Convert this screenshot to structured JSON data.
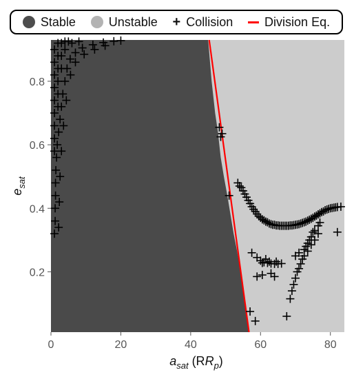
{
  "chart_data": {
    "type": "scatter",
    "xlabel_main": "a",
    "xlabel_sub": "sat",
    "xlabel_unit_open": " (R",
    "xlabel_unit_sub": "p",
    "xlabel_unit_close": ")",
    "ylabel_main": "e",
    "ylabel_sub": "sat",
    "xlim": [
      0,
      84
    ],
    "ylim": [
      0.01,
      0.93
    ],
    "x_ticks": [
      0,
      20,
      40,
      60,
      80
    ],
    "y_ticks": [
      0.2,
      0.4,
      0.6,
      0.8
    ],
    "x_tick_labels": [
      "0",
      "20",
      "40",
      "60",
      "80"
    ],
    "y_tick_labels": [
      "0.2",
      "0.4",
      "0.6",
      "0.8"
    ],
    "legend": [
      {
        "label": "Stable",
        "color": "#4d4d4d",
        "symbol": "dot"
      },
      {
        "label": "Unstable",
        "color": "#b3b3b3",
        "symbol": "dot"
      },
      {
        "label": "Collision",
        "color": "#000000",
        "symbol": "plus"
      },
      {
        "label": "Division Eq.",
        "color": "#ff0000",
        "symbol": "line"
      }
    ],
    "regions": {
      "stable_color": "#4a4a4a",
      "unstable_color": "#cccccc",
      "boundary": [
        [
          45.0,
          0.93
        ],
        [
          46.0,
          0.8
        ],
        [
          47.0,
          0.7
        ],
        [
          47.8,
          0.64
        ],
        [
          48.6,
          0.56
        ],
        [
          49.5,
          0.5
        ],
        [
          50.5,
          0.44
        ],
        [
          51.4,
          0.38
        ],
        [
          52.3,
          0.32
        ],
        [
          53.2,
          0.27
        ],
        [
          54.0,
          0.22
        ],
        [
          54.8,
          0.17
        ],
        [
          55.6,
          0.11
        ],
        [
          56.2,
          0.06
        ],
        [
          56.5,
          0.01
        ]
      ]
    },
    "series": [
      {
        "name": "Division Eq.",
        "type": "line",
        "color": "#ff0000",
        "x": [
          45.3,
          56.7
        ],
        "y": [
          0.93,
          0.01
        ]
      },
      {
        "name": "Collision",
        "type": "scatter",
        "color": "#000000",
        "points": [
          [
            1.0,
            0.32
          ],
          [
            1.2,
            0.36
          ],
          [
            1.2,
            0.4
          ],
          [
            1.3,
            0.44
          ],
          [
            1.3,
            0.48
          ],
          [
            1.4,
            0.52
          ],
          [
            1.6,
            0.56
          ],
          [
            1.8,
            0.6
          ],
          [
            2.2,
            0.64
          ],
          [
            2.6,
            0.68
          ],
          [
            3.0,
            0.72
          ],
          [
            3.4,
            0.76
          ],
          [
            4.0,
            0.8
          ],
          [
            4.6,
            0.84
          ],
          [
            5.5,
            0.87
          ],
          [
            7.0,
            0.89
          ],
          [
            9.0,
            0.905
          ],
          [
            12.0,
            0.915
          ],
          [
            15.0,
            0.922
          ],
          [
            18.0,
            0.926
          ],
          [
            20.0,
            0.928
          ],
          [
            2.2,
            0.34
          ],
          [
            2.4,
            0.42
          ],
          [
            2.6,
            0.5
          ],
          [
            3.0,
            0.58
          ],
          [
            3.6,
            0.66
          ],
          [
            4.4,
            0.74
          ],
          [
            5.6,
            0.82
          ],
          [
            7.0,
            0.86
          ],
          [
            9.5,
            0.885
          ],
          [
            12.5,
            0.9
          ],
          [
            15.5,
            0.912
          ],
          [
            1.0,
            0.9
          ],
          [
            1.0,
            0.86
          ],
          [
            1.0,
            0.82
          ],
          [
            1.0,
            0.78
          ],
          [
            1.0,
            0.74
          ],
          [
            1.0,
            0.7
          ],
          [
            1.0,
            0.66
          ],
          [
            1.0,
            0.62
          ],
          [
            1.0,
            0.58
          ],
          [
            2.0,
            0.92
          ],
          [
            3.0,
            0.92
          ],
          [
            4.0,
            0.925
          ],
          [
            5.0,
            0.925
          ],
          [
            2.0,
            0.88
          ],
          [
            2.0,
            0.84
          ],
          [
            2.0,
            0.8
          ],
          [
            2.0,
            0.76
          ],
          [
            2.0,
            0.72
          ],
          [
            3.0,
            0.88
          ],
          [
            3.0,
            0.84
          ],
          [
            4.0,
            0.9
          ],
          [
            6.0,
            0.92
          ],
          [
            8.0,
            0.925
          ],
          [
            48.2,
            0.655
          ],
          [
            48.6,
            0.625
          ],
          [
            49.0,
            0.635
          ],
          [
            51.0,
            0.44
          ],
          [
            53.5,
            0.48
          ],
          [
            54.5,
            0.465
          ],
          [
            55.5,
            0.445
          ],
          [
            56.5,
            0.425
          ],
          [
            57.5,
            0.405
          ],
          [
            58.5,
            0.39
          ],
          [
            59.5,
            0.375
          ],
          [
            60.5,
            0.365
          ],
          [
            61.5,
            0.358
          ],
          [
            62.5,
            0.352
          ],
          [
            63.5,
            0.348
          ],
          [
            64.5,
            0.346
          ],
          [
            65.5,
            0.345
          ],
          [
            66.5,
            0.345
          ],
          [
            67.5,
            0.345
          ],
          [
            68.5,
            0.346
          ],
          [
            69.5,
            0.347
          ],
          [
            70.5,
            0.349
          ],
          [
            71.5,
            0.352
          ],
          [
            72.5,
            0.356
          ],
          [
            73.5,
            0.361
          ],
          [
            74.5,
            0.367
          ],
          [
            75.5,
            0.374
          ],
          [
            76.5,
            0.381
          ],
          [
            77.5,
            0.388
          ],
          [
            78.5,
            0.394
          ],
          [
            79.5,
            0.398
          ],
          [
            80.5,
            0.401
          ],
          [
            81.5,
            0.403
          ],
          [
            83.0,
            0.405
          ],
          [
            54.0,
            0.47
          ],
          [
            55.0,
            0.455
          ],
          [
            56.0,
            0.435
          ],
          [
            57.0,
            0.415
          ],
          [
            58.0,
            0.397
          ],
          [
            59.0,
            0.382
          ],
          [
            60.0,
            0.37
          ],
          [
            61.0,
            0.362
          ],
          [
            62.0,
            0.356
          ],
          [
            63.0,
            0.35
          ],
          [
            64.0,
            0.348
          ],
          [
            65.0,
            0.346
          ],
          [
            66.0,
            0.345
          ],
          [
            67.0,
            0.345
          ],
          [
            68.0,
            0.345
          ],
          [
            69.0,
            0.346
          ],
          [
            70.0,
            0.348
          ],
          [
            71.0,
            0.35
          ],
          [
            72.0,
            0.354
          ],
          [
            73.0,
            0.358
          ],
          [
            74.0,
            0.364
          ],
          [
            75.0,
            0.37
          ],
          [
            76.0,
            0.377
          ],
          [
            77.0,
            0.384
          ],
          [
            78.0,
            0.39
          ],
          [
            79.0,
            0.396
          ],
          [
            80.0,
            0.4
          ],
          [
            81.0,
            0.402
          ],
          [
            82.0,
            0.404
          ],
          [
            57.5,
            0.26
          ],
          [
            59.0,
            0.245
          ],
          [
            60.0,
            0.235
          ],
          [
            61.0,
            0.23
          ],
          [
            62.0,
            0.228
          ],
          [
            63.0,
            0.226
          ],
          [
            64.0,
            0.225
          ],
          [
            65.0,
            0.225
          ],
          [
            66.0,
            0.226
          ],
          [
            60.5,
            0.228
          ],
          [
            62.5,
            0.232
          ],
          [
            64.5,
            0.232
          ],
          [
            61.5,
            0.24
          ],
          [
            59.0,
            0.185
          ],
          [
            60.5,
            0.19
          ],
          [
            63.0,
            0.195
          ],
          [
            64.0,
            0.185
          ],
          [
            71.0,
            0.26
          ],
          [
            70.0,
            0.25
          ],
          [
            72.5,
            0.27
          ],
          [
            73.0,
            0.28
          ],
          [
            73.5,
            0.29
          ],
          [
            74.0,
            0.3
          ],
          [
            74.5,
            0.31
          ],
          [
            75.0,
            0.325
          ],
          [
            75.5,
            0.33
          ],
          [
            76.5,
            0.345
          ],
          [
            77.0,
            0.355
          ],
          [
            82.0,
            0.325
          ],
          [
            70.0,
            0.18
          ],
          [
            70.5,
            0.2
          ],
          [
            71.0,
            0.21
          ],
          [
            71.5,
            0.225
          ],
          [
            72.0,
            0.24
          ],
          [
            72.5,
            0.25
          ],
          [
            73.5,
            0.265
          ],
          [
            74.5,
            0.285
          ],
          [
            75.5,
            0.3
          ],
          [
            76.5,
            0.32
          ],
          [
            69.0,
            0.14
          ],
          [
            69.5,
            0.16
          ],
          [
            68.5,
            0.115
          ],
          [
            57.0,
            0.075
          ],
          [
            58.5,
            0.045
          ],
          [
            67.5,
            0.06
          ]
        ]
      }
    ]
  }
}
